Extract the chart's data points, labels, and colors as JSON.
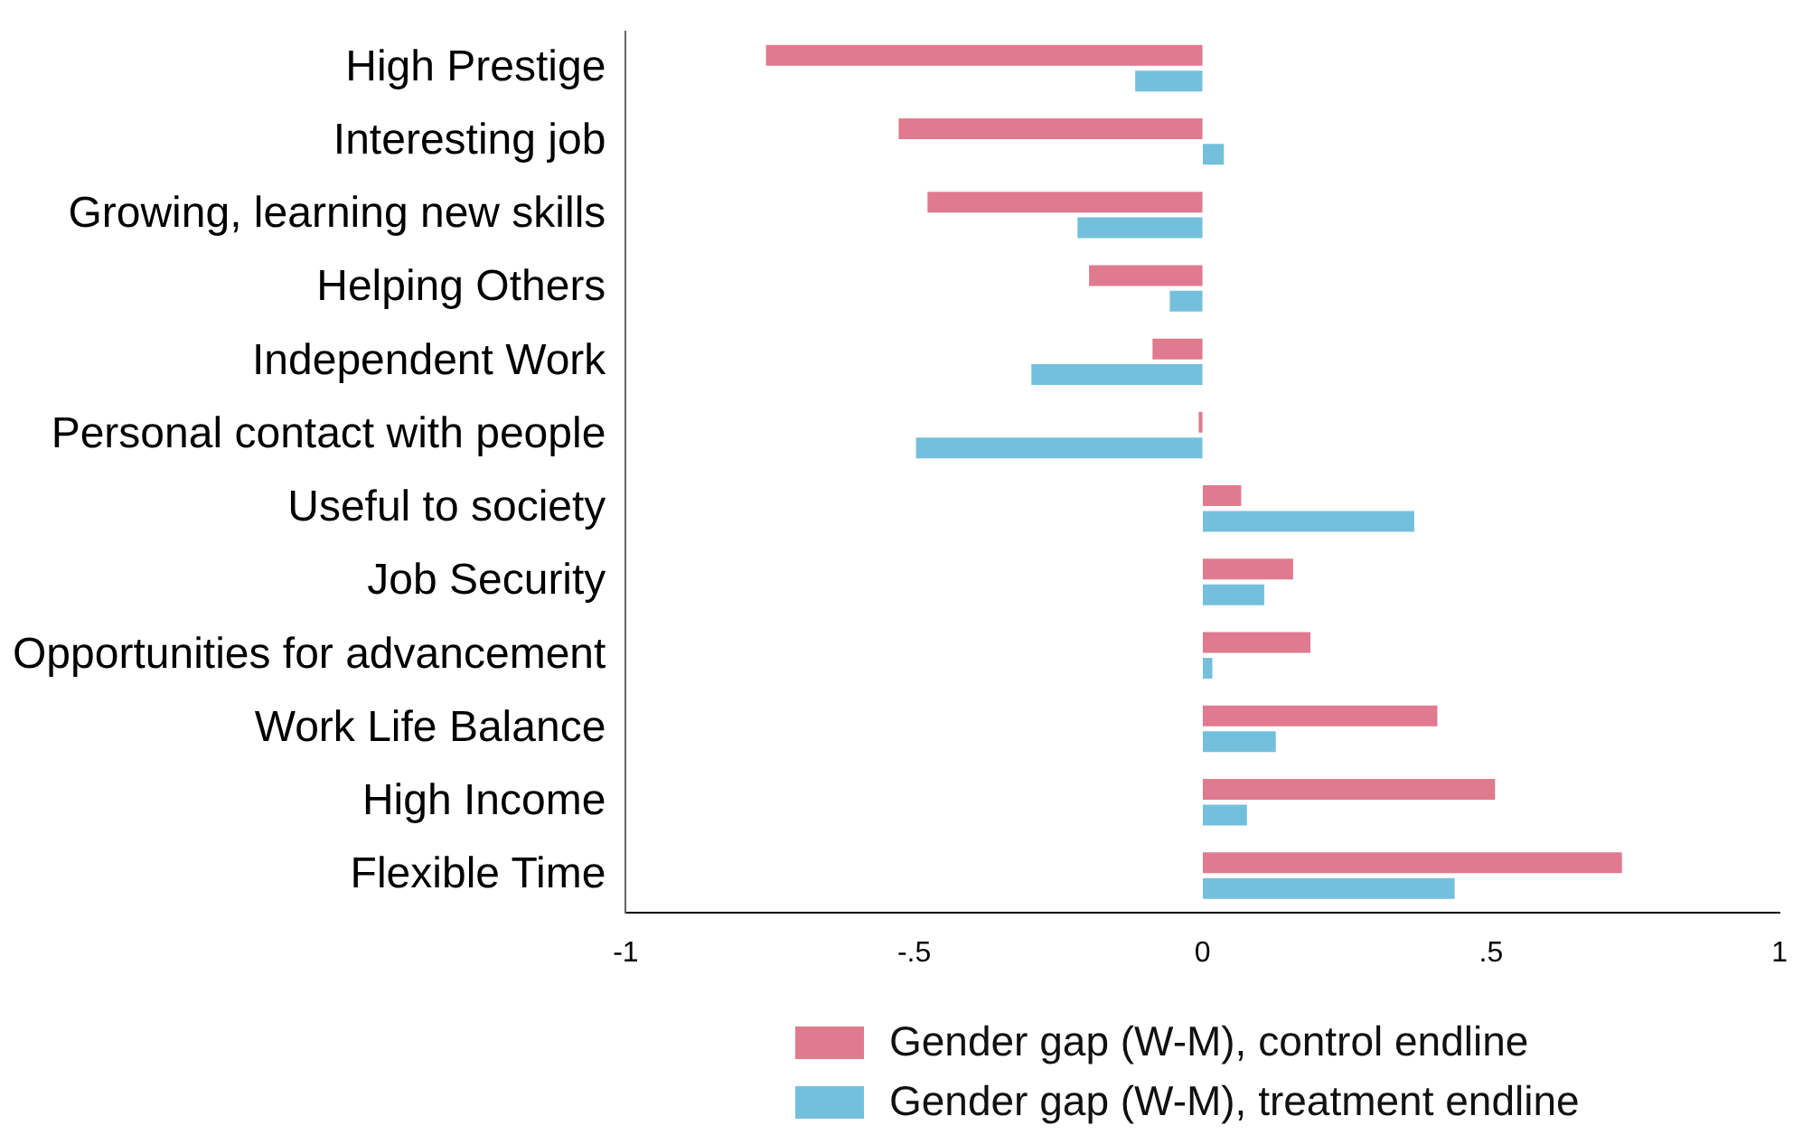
{
  "chart_data": {
    "type": "bar",
    "orientation": "horizontal",
    "categories": [
      "High Prestige",
      "Interesting job",
      "Growing, learning new skills",
      "Helping Others",
      "Independent Work",
      "Personal contact with people",
      "Useful to society",
      "Job Security",
      "Opportunities for advancement",
      "Work Life Balance",
      "High Income",
      "Flexible Time"
    ],
    "series": [
      {
        "name": "Gender gap (W-M), control endline",
        "color": "#e07a8f",
        "values": [
          -0.76,
          -0.53,
          -0.48,
          -0.2,
          -0.09,
          -0.01,
          0.07,
          0.16,
          0.19,
          0.41,
          0.51,
          0.73
        ]
      },
      {
        "name": "Gender gap (W-M), treatment endline",
        "color": "#74c0dc",
        "values": [
          -0.12,
          0.04,
          -0.22,
          -0.06,
          -0.3,
          -0.5,
          0.37,
          0.11,
          0.02,
          0.13,
          0.08,
          0.44
        ]
      }
    ],
    "xlim": [
      -1,
      1
    ],
    "xticks": [
      -1,
      {
        "value": -0.5,
        "label": "-.5"
      },
      0,
      {
        "value": 0.5,
        "label": ".5"
      },
      1
    ],
    "grid": false,
    "legend": "bottom"
  }
}
